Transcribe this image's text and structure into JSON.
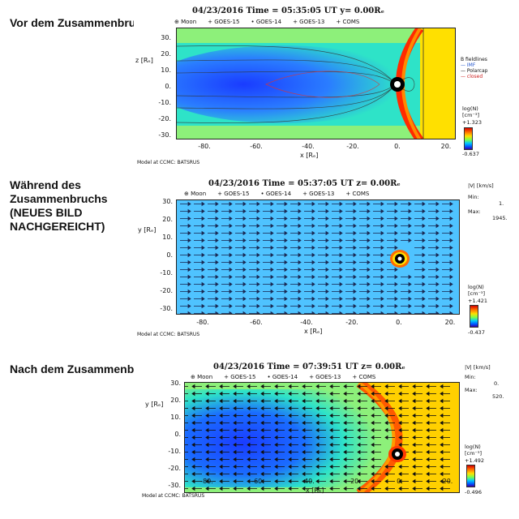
{
  "sections": [
    {
      "heading_lines": [
        "Vor dem Zusammenbruch"
      ],
      "title": "04/23/2016 Time = 05:35:05 UT y= 0.00Rₑ",
      "legend": [
        "⊕ Moon",
        "+ GOES-15",
        "• GOES-14",
        "+ GOES-13",
        "+ COMS"
      ],
      "y_axis_label": "z [Rₑ]",
      "x_axis_label": "x [Rₑ]",
      "y_ticks": [
        "30.",
        "20.",
        "10.",
        "0.",
        "-10.",
        "-20.",
        "-30."
      ],
      "x_ticks": [
        "-80.",
        "-60.",
        "-40.",
        "-20.",
        "0.",
        "20."
      ],
      "credit": "Model at CCMC: BATSRUS",
      "colorbar_label": "log(N)",
      "colorbar_unit": "[cm⁻³]",
      "colorbar_max": "+1.323",
      "colorbar_min": "-0.637",
      "fieldline_legend": [
        "B fieldlines",
        "— IMF",
        "— Polarcap",
        "— closed"
      ]
    },
    {
      "heading_lines": [
        "Während des",
        "Zusammenbruchs",
        "(NEUES BILD",
        "NACHGEREICHT)"
      ],
      "title": "04/23/2016 Time = 05:37:05 UT z= 0.00Rₑ",
      "legend": [
        "⊕ Moon",
        "+ GOES-15",
        "• GOES-14",
        "+ GOES-13",
        "+ COMS"
      ],
      "y_axis_label": "y [Rₑ]",
      "x_axis_label": "x [Rₑ]",
      "y_ticks": [
        "30.",
        "20.",
        "10.",
        "0.",
        "-10.",
        "-20.",
        "-30."
      ],
      "x_ticks": [
        "-80.",
        "-60.",
        "-40.",
        "-20.",
        "0.",
        "20."
      ],
      "credit": "Model at CCMC: BATSRUS",
      "colorbar_label": "log(N)",
      "colorbar_unit": "[cm⁻³]",
      "colorbar_max": "+1.421",
      "colorbar_min": "-0.437",
      "vel_label": "|V| [km/s]",
      "vel_min_label": "Min:",
      "vel_min": "1.",
      "vel_max_label": "Max:",
      "vel_max": "1945."
    },
    {
      "heading_lines": [
        "Nach dem Zusammenbruch"
      ],
      "title": "04/23/2016 Time = 07:39:51 UT z= 0.00Rₑ",
      "legend": [
        "⊕ Moon",
        "+ GOES-15",
        "• GOES-14",
        "+ GOES-13",
        "+ COMS"
      ],
      "y_axis_label": "y [Rₑ]",
      "x_axis_label": "x [Rₑ]",
      "y_ticks": [
        "30.",
        "20.",
        "10.",
        "0.",
        "-10.",
        "-20.",
        "-30."
      ],
      "x_ticks": [
        "-80.",
        "-60.",
        "-40.",
        "-20.",
        "0.",
        "20."
      ],
      "credit": "Model at CCMC: BATSRUS",
      "colorbar_label": "log(N)",
      "colorbar_unit": "[cm⁻³]",
      "colorbar_max": "+1.492",
      "colorbar_min": "-0.496",
      "vel_label": "|V| [km/s]",
      "vel_min_label": "Min:",
      "vel_min": "0.",
      "vel_max_label": "Max:",
      "vel_max": "520."
    }
  ],
  "colors": {
    "magnetosheath": "#ff2a00",
    "bowshock": "#ffd000",
    "solarwind": "#4fc3ff",
    "tail": "#1a5cff",
    "lobe": "#2ee3c8",
    "earth": "#000000"
  }
}
